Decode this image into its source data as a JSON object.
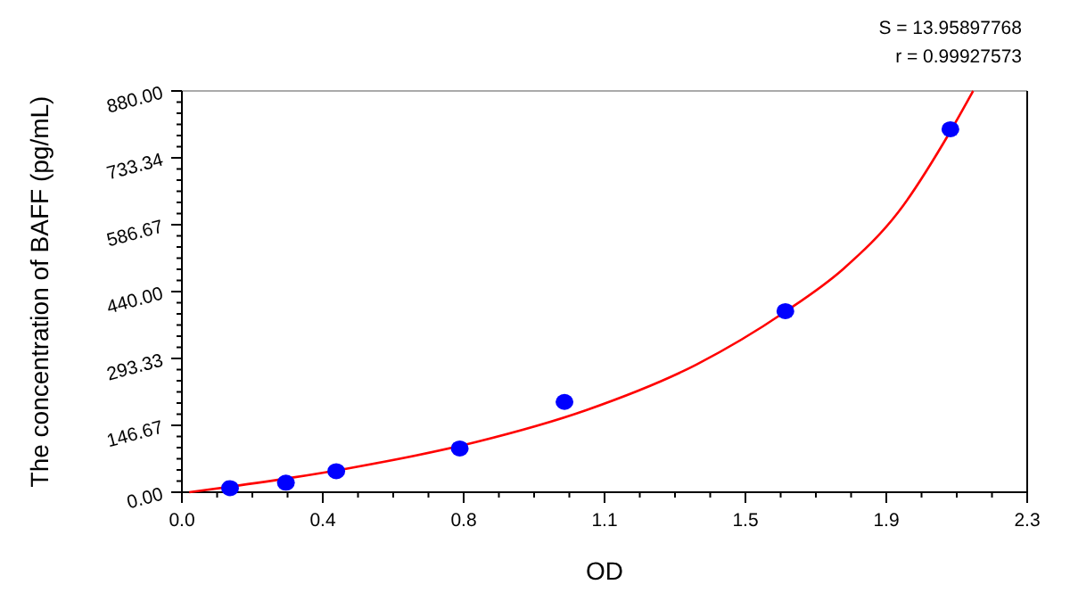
{
  "chart_data": {
    "type": "scatter",
    "xlabel": "OD",
    "ylabel": "The concentration of BAFF (pg/mL)",
    "annotations": [
      "S = 13.95897768",
      "r = 0.99927573"
    ],
    "xlim": [
      0,
      2.3
    ],
    "ylim": [
      0,
      880
    ],
    "xticks": [
      {
        "value": 0,
        "label": "0.0"
      },
      {
        "value": 0.38333,
        "label": "0.4"
      },
      {
        "value": 0.76667,
        "label": "0.8"
      },
      {
        "value": 1.15,
        "label": "1.1"
      },
      {
        "value": 1.53333,
        "label": "1.5"
      },
      {
        "value": 1.91667,
        "label": "1.9"
      },
      {
        "value": 2.3,
        "label": "2.3"
      }
    ],
    "yticks": [
      {
        "value": 0,
        "label": "0.00"
      },
      {
        "value": 146.67,
        "label": "146.67"
      },
      {
        "value": 293.33,
        "label": "293.33"
      },
      {
        "value": 440,
        "label": "440.00"
      },
      {
        "value": 586.67,
        "label": "586.67"
      },
      {
        "value": 733.34,
        "label": "733.34"
      },
      {
        "value": 880,
        "label": "880.00"
      }
    ],
    "grid": false,
    "series": [
      {
        "type": "line",
        "color": "#ff0000",
        "marker": "none",
        "line_style": "solid",
        "x": [
          0.02,
          0.13,
          0.3,
          0.45,
          0.8,
          1.1,
          1.4,
          1.64,
          1.8,
          1.95,
          2.09,
          2.153
        ],
        "values": [
          0,
          12,
          32,
          52,
          110,
          180,
          280,
          395,
          490,
          615,
          790,
          880
        ]
      },
      {
        "color": "#0000ff",
        "marker": "circle",
        "x": [
          0.131,
          0.283,
          0.42,
          0.756,
          1.041,
          1.642,
          2.091
        ],
        "values": [
          9,
          21,
          46,
          96,
          198,
          397,
          796
        ]
      }
    ]
  }
}
